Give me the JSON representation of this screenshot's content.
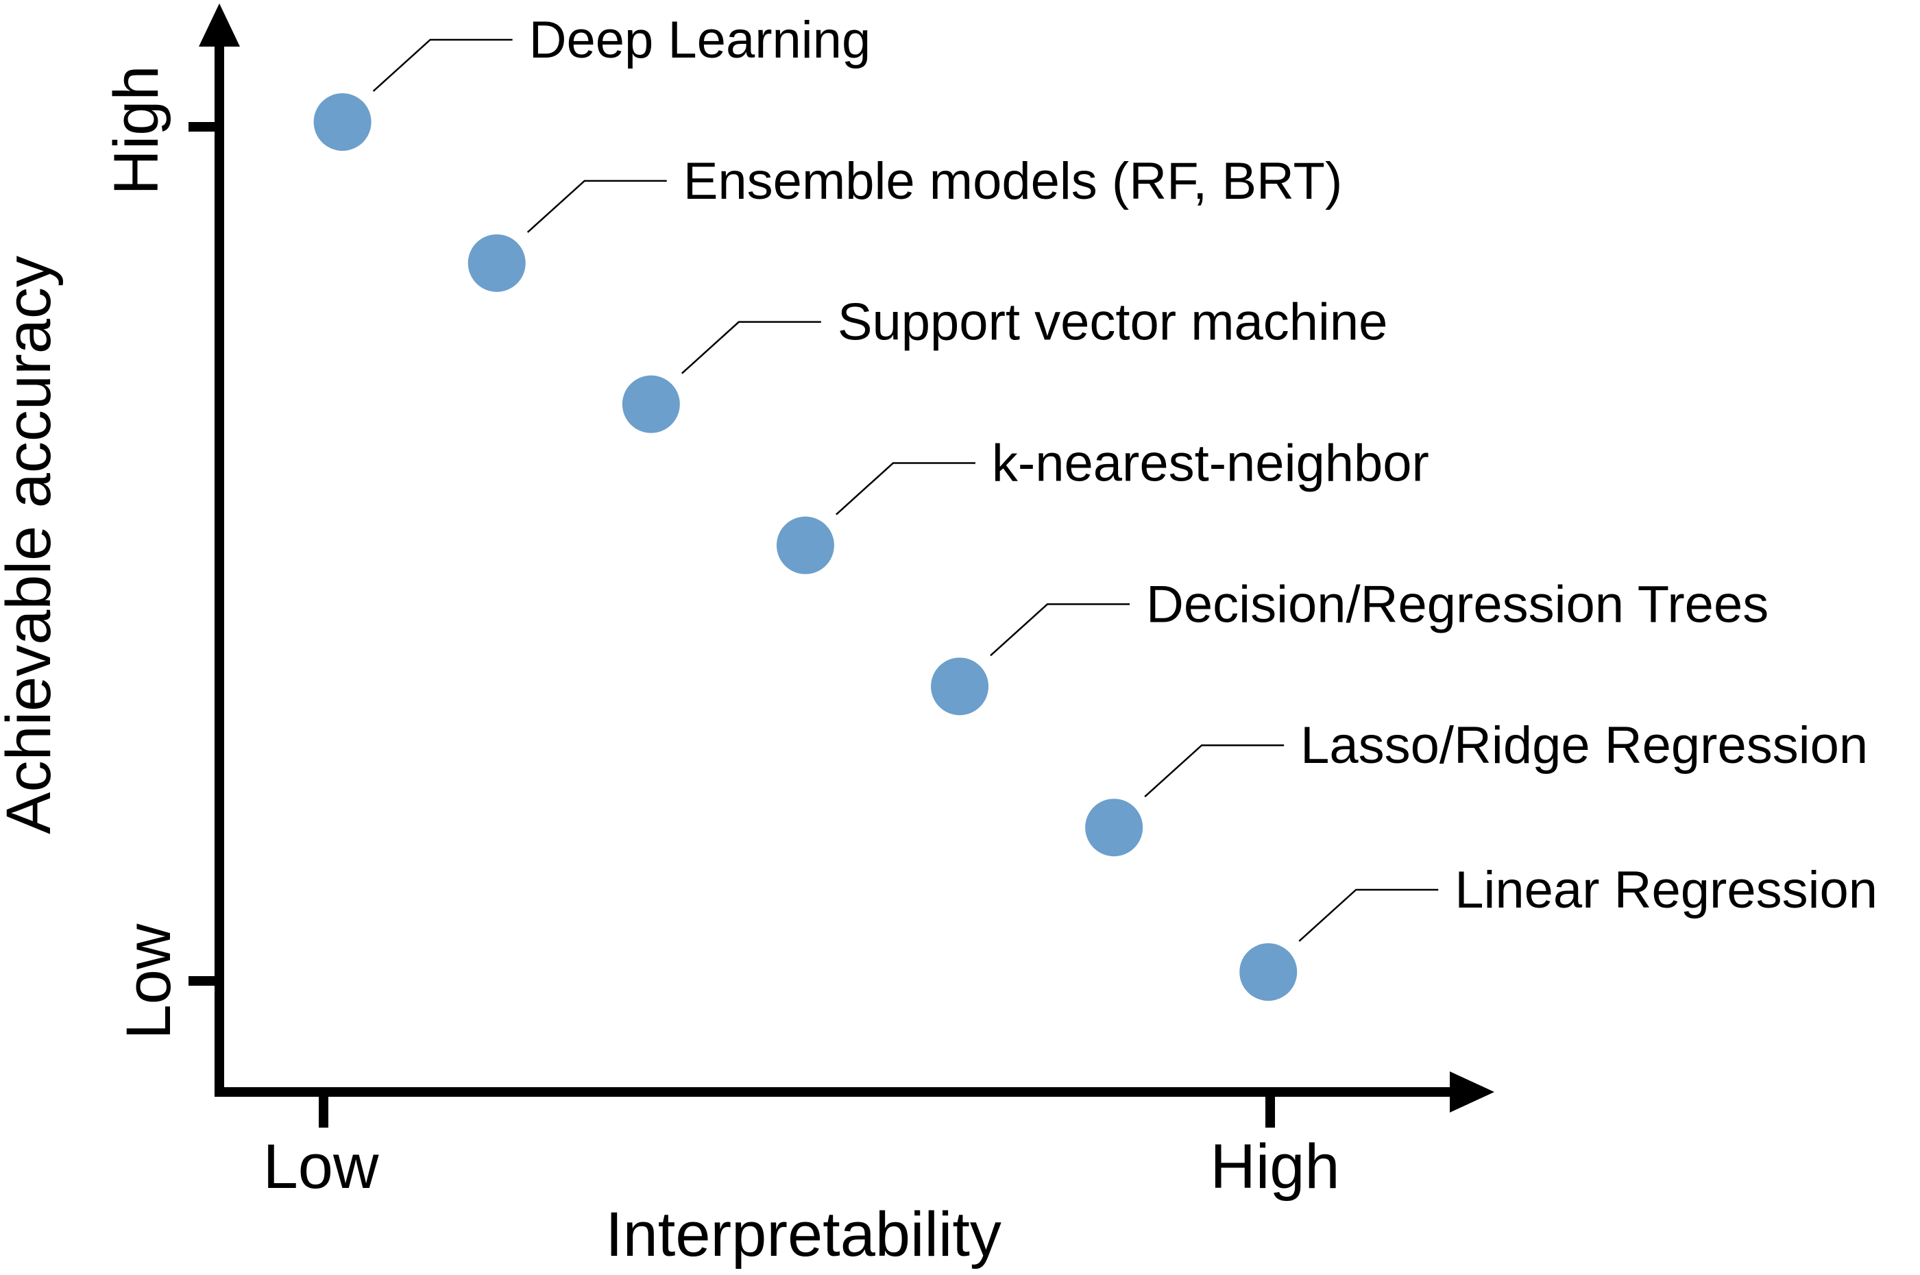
{
  "chart_data": {
    "type": "scatter",
    "title": "",
    "xlabel": "Interpretability",
    "ylabel": "Achievable accuracy",
    "x_ticks": [
      "Low",
      "High"
    ],
    "y_ticks": [
      "Low",
      "High"
    ],
    "xlim": [
      0,
      1
    ],
    "ylim": [
      0,
      1
    ],
    "grid": false,
    "point_color": "#6c9fcb",
    "points": [
      {
        "label": "Deep Learning",
        "x": 0.02,
        "y": 1.0
      },
      {
        "label": "Ensemble models (RF, BRT)",
        "x": 0.183,
        "y": 0.834
      },
      {
        "label": "Support vector machine",
        "x": 0.346,
        "y": 0.668
      },
      {
        "label": "k-nearest-neighbor",
        "x": 0.509,
        "y": 0.502
      },
      {
        "label": "Decision/Regression Trees",
        "x": 0.672,
        "y": 0.336
      },
      {
        "label": "Lasso/Ridge Regression",
        "x": 0.835,
        "y": 0.17
      },
      {
        "label": "Linear Regression",
        "x": 0.998,
        "y": 0.0
      }
    ]
  }
}
